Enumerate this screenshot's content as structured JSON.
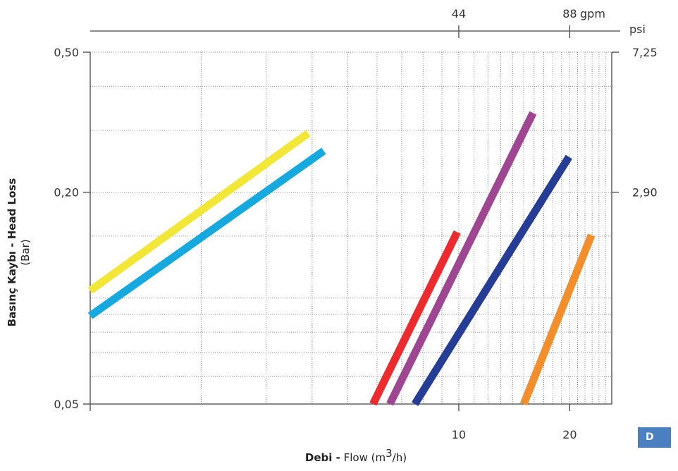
{
  "chart_data": {
    "type": "line",
    "x_scale": "log",
    "y_scale": "log",
    "xlim": [
      1,
      26
    ],
    "ylim": [
      0.05,
      0.5
    ],
    "xlabel_bold": "Debi -",
    "xlabel_rest": " Flow (m",
    "xlabel_sup": "3",
    "xlabel_end": "/h)",
    "ylabel_bold": "Basınç Kaybı - Head Loss",
    "ylabel_paren": "(Bar)",
    "x_ticks": [
      {
        "value": 10,
        "label": "10"
      },
      {
        "value": 20,
        "label": "20"
      }
    ],
    "y_ticks": [
      {
        "value": 0.05,
        "label": "0,05"
      },
      {
        "value": 0.2,
        "label": "0,20"
      },
      {
        "value": 0.5,
        "label": "0,50"
      }
    ],
    "top_axis": {
      "unit": "gpm",
      "ticks": [
        {
          "value": 10,
          "label": "44"
        },
        {
          "value": 20,
          "label": "88"
        }
      ]
    },
    "right_axis": {
      "unit": "psi",
      "ticks": [
        {
          "value": 0.2,
          "label": "2,90"
        },
        {
          "value": 0.5,
          "label": "7,25"
        }
      ]
    },
    "grid": true,
    "badge": "D",
    "series": [
      {
        "color": "#f2e637",
        "points": [
          [
            1,
            0.105
          ],
          [
            3.9,
            0.294
          ]
        ]
      },
      {
        "color": "#16a9e0",
        "points": [
          [
            1,
            0.089
          ],
          [
            4.3,
            0.262
          ]
        ]
      },
      {
        "color": "#ed2a2e",
        "points": [
          [
            5.85,
            0.05
          ],
          [
            9.9,
            0.154
          ]
        ]
      },
      {
        "color": "#9e4692",
        "points": [
          [
            6.5,
            0.05
          ],
          [
            15.9,
            0.336
          ]
        ]
      },
      {
        "color": "#263d96",
        "points": [
          [
            7.6,
            0.05
          ],
          [
            19.9,
            0.252
          ]
        ]
      },
      {
        "color": "#f28e2c",
        "points": [
          [
            15.0,
            0.05
          ],
          [
            22.9,
            0.151
          ]
        ]
      }
    ]
  }
}
